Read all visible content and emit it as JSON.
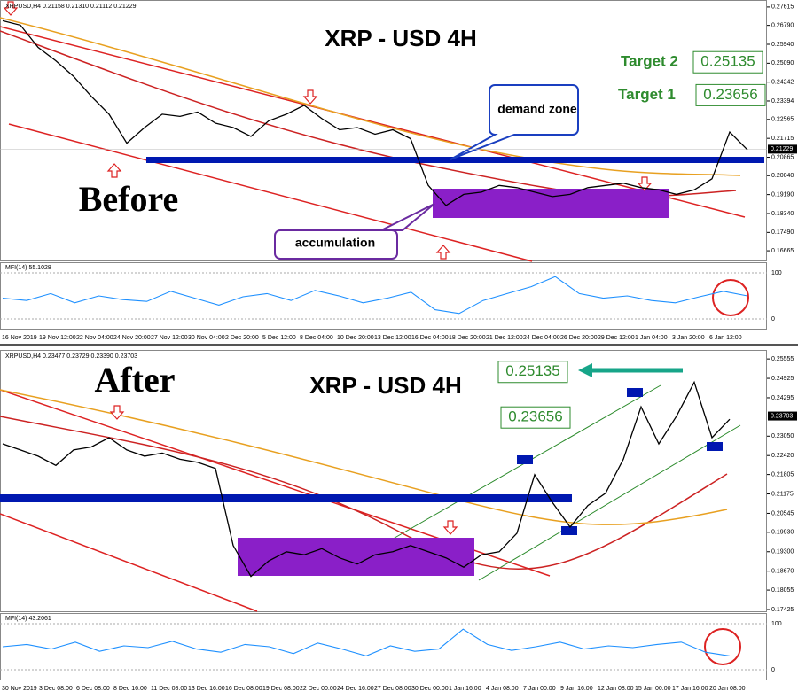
{
  "chart_data": [
    {
      "type": "line",
      "header": "XRPUSD,H4 0.21158 0.21310 0.21112 0.21229",
      "title": "XRP - USD 4H",
      "stage": "Before",
      "demand_zone": "demand zone",
      "accumulation": "accumulation",
      "targets": [
        {
          "name": "Target 2",
          "value": 0.25135
        },
        {
          "name": "Target 1",
          "value": 0.23656
        }
      ],
      "color": "#000000",
      "ylim": [
        0.1627,
        0.2785
      ],
      "yticks": [
        0.27615,
        {
          "value": 0.2679,
          "label": "0.26790"
        },
        {
          "value": 0.2594,
          "label": "0.25940"
        },
        {
          "value": 0.2509,
          "label": "0.25090"
        },
        0.24242,
        0.23394,
        0.22565,
        0.21715,
        0.20865,
        {
          "value": 0.2004,
          "label": "0.20040"
        },
        {
          "value": 0.1919,
          "label": "0.19190"
        },
        {
          "value": 0.1834,
          "label": "0.18340"
        },
        {
          "value": 0.1749,
          "label": "0.17490"
        },
        0.16665
      ],
      "last_price": 0.21229,
      "values": [
        0.27,
        0.268,
        0.258,
        0.252,
        0.245,
        0.236,
        0.228,
        0.215,
        0.222,
        0.228,
        0.227,
        0.229,
        0.224,
        0.222,
        0.218,
        0.225,
        0.228,
        0.232,
        0.226,
        0.221,
        0.222,
        0.219,
        0.221,
        0.217,
        0.196,
        0.187,
        0.192,
        0.193,
        0.196,
        0.195,
        0.193,
        0.191,
        0.192,
        0.195,
        0.196,
        0.197,
        0.195,
        0.194,
        0.192,
        0.194,
        0.199,
        0.22,
        0.212
      ],
      "xtick_labels": [
        "16 Nov 2019",
        "19 Nov 12:00",
        "22 Nov 04:00",
        "24 Nov 20:00",
        "27 Nov 12:00",
        "30 Nov 04:00",
        "2 Dec 20:00",
        "5 Dec 12:00",
        "8 Dec 04:00",
        "10 Dec 20:00",
        "13 Dec 12:00",
        "16 Dec 04:00",
        "18 Dec 20:00",
        "21 Dec 12:00",
        "24 Dec 04:00",
        "26 Dec 20:00",
        "29 Dec 12:00",
        "1 Jan 04:00",
        "3 Jan 20:00",
        "6 Jan 12:00"
      ],
      "mfi": {
        "label": "MFI(14) 55.1028",
        "color": "#1e90ff",
        "ylim": [
          0,
          100
        ],
        "yticks": [
          0,
          100
        ],
        "values": [
          45,
          40,
          55,
          35,
          50,
          42,
          38,
          60,
          45,
          30,
          48,
          55,
          40,
          62,
          50,
          35,
          45,
          58,
          20,
          12,
          40,
          55,
          70,
          92,
          55,
          45,
          50,
          40,
          35,
          48,
          60,
          50
        ]
      }
    },
    {
      "type": "line",
      "header": "XRPUSD,H4 0.23477 0.23729 0.23390 0.23703",
      "title": "XRP - USD 4H",
      "stage": "After",
      "targets": [
        {
          "value": 0.25135
        },
        {
          "value": 0.23656
        }
      ],
      "color": "#000000",
      "ylim": [
        0.1731,
        0.2576
      ],
      "yticks": [
        0.25555,
        0.24925,
        0.24295,
        {
          "value": 0.2305,
          "label": "0.23050"
        },
        {
          "value": 0.2242,
          "label": "0.22420"
        },
        0.21805,
        0.21175,
        0.20545,
        {
          "value": 0.1993,
          "label": "0.19930"
        },
        {
          "value": 0.193,
          "label": "0.19300"
        },
        {
          "value": 0.1867,
          "label": "0.18670"
        },
        0.18055,
        0.17425
      ],
      "last_price": 0.23703,
      "values": [
        0.228,
        0.226,
        0.224,
        0.221,
        0.226,
        0.227,
        0.23,
        0.226,
        0.224,
        0.225,
        0.223,
        0.222,
        0.22,
        0.195,
        0.185,
        0.19,
        0.193,
        0.192,
        0.194,
        0.191,
        0.189,
        0.192,
        0.193,
        0.195,
        0.193,
        0.191,
        0.188,
        0.192,
        0.193,
        0.199,
        0.218,
        0.209,
        0.201,
        0.208,
        0.212,
        0.223,
        0.24,
        0.228,
        0.237,
        0.248,
        0.23,
        0.236
      ],
      "xtick_labels": [
        "30 Nov 2019",
        "3 Dec 08:00",
        "6 Dec 08:00",
        "8 Dec 16:00",
        "11 Dec 08:00",
        "13 Dec 16:00",
        "16 Dec 08:00",
        "19 Dec 08:00",
        "22 Dec 00:00",
        "24 Dec 16:00",
        "27 Dec 08:00",
        "30 Dec 00:00",
        "1 Jan 16:00",
        "4 Jan 08:00",
        "7 Jan 00:00",
        "9 Jan 16:00",
        "12 Jan 08:00",
        "15 Jan 00:00",
        "17 Jan 16:00",
        "20 Jan 08:00"
      ],
      "mfi": {
        "label": "MFI(14) 43.2061",
        "color": "#1e90ff",
        "ylim": [
          0,
          100
        ],
        "yticks": [
          0,
          100
        ],
        "values": [
          50,
          55,
          45,
          60,
          40,
          52,
          48,
          62,
          45,
          38,
          55,
          50,
          35,
          58,
          45,
          30,
          52,
          40,
          45,
          88,
          55,
          42,
          50,
          60,
          45,
          52,
          48,
          55,
          60,
          38,
          30
        ]
      }
    }
  ]
}
